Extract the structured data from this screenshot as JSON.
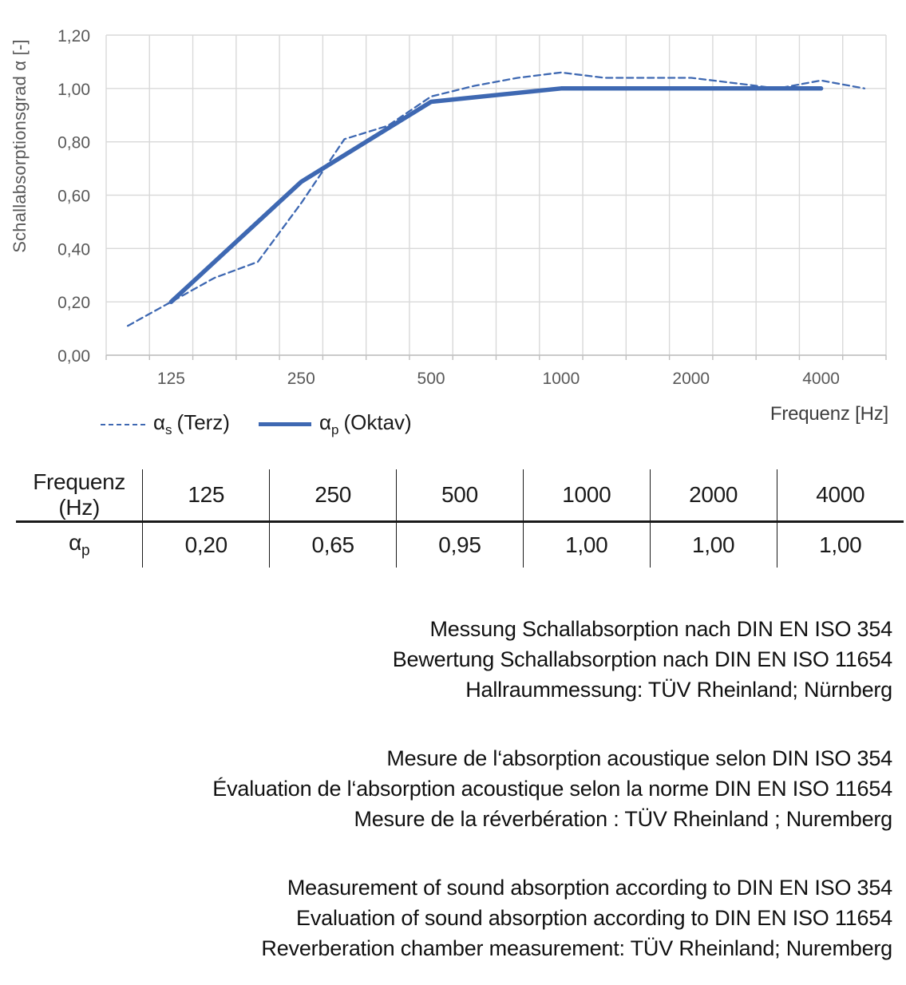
{
  "colors": {
    "line_blue": "#3E68B2",
    "grid_gray": "#D9D9D9",
    "axis_line_gray": "#BFBFBF",
    "axis_text_gray": "#595959",
    "text_black": "#1A1A1A"
  },
  "chart_data": {
    "type": "line",
    "x_scale": "third-octave categories (logarithmic frequency bands)",
    "categories": [
      100,
      125,
      160,
      200,
      250,
      315,
      400,
      500,
      630,
      800,
      1000,
      1250,
      1600,
      2000,
      2500,
      3150,
      4000,
      5000
    ],
    "x_tick_labels": [
      "125",
      "250",
      "500",
      "1000",
      "2000",
      "4000"
    ],
    "series": [
      {
        "name": "αs (Terz)",
        "style": "dashed",
        "values": [
          0.11,
          0.2,
          0.29,
          0.35,
          0.57,
          0.81,
          0.86,
          0.97,
          1.01,
          1.04,
          1.06,
          1.04,
          1.04,
          1.04,
          1.02,
          1.0,
          1.03,
          1.0
        ]
      },
      {
        "name": "αp (Oktav)",
        "style": "solid",
        "values": [
          null,
          0.2,
          null,
          null,
          0.65,
          null,
          null,
          0.95,
          null,
          null,
          1.0,
          null,
          null,
          1.0,
          null,
          null,
          1.0,
          null
        ]
      }
    ],
    "title": "",
    "xlabel": "Frequenz [Hz]",
    "ylabel": "Schallabsorptionsgrad α [-]",
    "ylim": [
      0,
      1.2
    ],
    "y_tick_step": 0.2,
    "grid": true,
    "legend_position": "below-left"
  },
  "legend": [
    {
      "alpha": "α",
      "sub": "s",
      "suffix": "(Terz)"
    },
    {
      "alpha": "α",
      "sub": "p",
      "suffix": "(Oktav)"
    }
  ],
  "table": {
    "header_row": [
      "Frequenz (Hz)",
      "125",
      "250",
      "500",
      "1000",
      "2000",
      "4000"
    ],
    "row_label_alpha": "α",
    "row_label_sub": "p",
    "values": [
      "0,20",
      "0,65",
      "0,95",
      "1,00",
      "1,00",
      "1,00"
    ]
  },
  "notes": {
    "de": [
      "Messung Schallabsorption nach DIN EN ISO 354",
      "Bewertung Schallabsorption nach DIN EN ISO 11654",
      "Hallraummessung: TÜV Rheinland; Nürnberg"
    ],
    "fr": [
      "Mesure de l‘absorption acoustique selon DIN ISO 354",
      "Évaluation de l‘absorption acoustique selon la norme DIN EN ISO 11654",
      "Mesure de la réverbération : TÜV Rheinland ; Nuremberg"
    ],
    "en": [
      "Measurement of sound absorption according to DIN EN ISO 354",
      "Evaluation of sound absorption according to DIN EN ISO 11654",
      "Reverberation chamber measurement: TÜV Rheinland; Nuremberg"
    ]
  }
}
